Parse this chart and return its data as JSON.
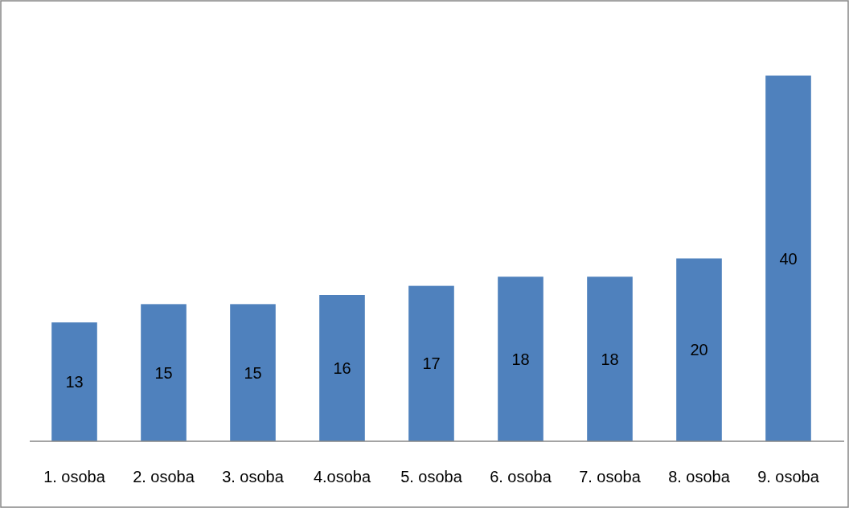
{
  "chart_data": {
    "type": "bar",
    "categories": [
      "1. osoba",
      "2. osoba",
      "3. osoba",
      "4.osoba",
      "5. osoba",
      "6. osoba",
      "7. osoba",
      "8. osoba",
      "9. osoba"
    ],
    "values": [
      13,
      15,
      15,
      16,
      17,
      18,
      18,
      20,
      40
    ],
    "color": "#4f81bd",
    "data_labels": true
  }
}
